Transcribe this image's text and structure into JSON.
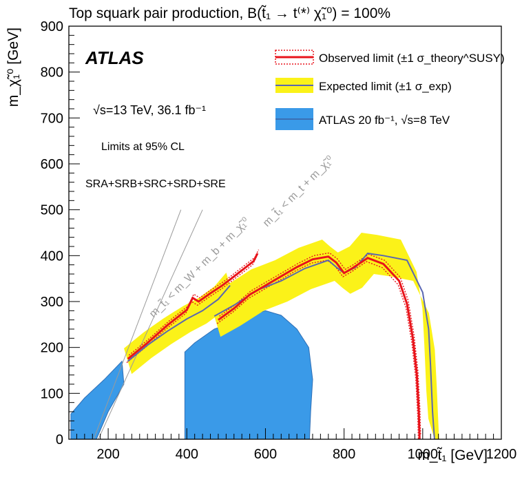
{
  "chart_data": {
    "type": "area",
    "title": "Top squark pair production, B(t̃₁ → t⁽*⁾ χ̃₁⁰) = 100%",
    "xlabel": "m_t̃₁ [GeV]",
    "ylabel": "m_χ̃₁⁰ [GeV]",
    "xlim": [
      100,
      1200
    ],
    "ylim": [
      0,
      900
    ],
    "x_ticks": [
      "200",
      "400",
      "600",
      "800",
      "1000",
      "1200"
    ],
    "y_ticks": [
      "0",
      "100",
      "200",
      "300",
      "400",
      "500",
      "600",
      "700",
      "800",
      "900"
    ],
    "grid": false,
    "legend_position": "top-right",
    "experiment": "ATLAS",
    "energy_lumi": "√s=13 TeV, 36.1 fb⁻¹",
    "cl_text": "Limits at 95% CL",
    "signal_regions": "SRA+SRB+SRC+SRD+SRE",
    "kinematic_labels": {
      "top": "m_t̃₁ < m_t + m_χ̃₁⁰",
      "w_b": "m_t̃₁ < m_W + m_b + m_χ̃₁⁰"
    },
    "series": [
      {
        "name": "Observed limit (±1 σ_theory^SUSY)",
        "color": "#e8141b",
        "upper_branch": [
          [
            250,
            175
          ],
          [
            300,
            210
          ],
          [
            350,
            248
          ],
          [
            400,
            282
          ],
          [
            415,
            308
          ],
          [
            430,
            300
          ],
          [
            460,
            318
          ],
          [
            490,
            335
          ],
          [
            510,
            348
          ],
          [
            540,
            368
          ],
          [
            570,
            388
          ],
          [
            580,
            405
          ]
        ],
        "lower_branch": [
          [
            480,
            260
          ],
          [
            520,
            285
          ],
          [
            560,
            315
          ],
          [
            600,
            335
          ],
          [
            640,
            355
          ],
          [
            680,
            375
          ],
          [
            720,
            392
          ],
          [
            760,
            398
          ],
          [
            780,
            385
          ],
          [
            800,
            362
          ],
          [
            820,
            372
          ],
          [
            860,
            395
          ],
          [
            900,
            382
          ],
          [
            940,
            345
          ],
          [
            960,
            295
          ],
          [
            975,
            220
          ],
          [
            985,
            140
          ],
          [
            990,
            60
          ],
          [
            992,
            0
          ]
        ]
      },
      {
        "name": "Expected limit (±1 σ_exp)",
        "color": "#5a67b0",
        "upper_branch": [
          [
            250,
            170
          ],
          [
            300,
            205
          ],
          [
            350,
            235
          ],
          [
            400,
            262
          ],
          [
            440,
            280
          ],
          [
            480,
            305
          ],
          [
            510,
            335
          ]
        ],
        "lower_branch": [
          [
            470,
            268
          ],
          [
            520,
            292
          ],
          [
            580,
            325
          ],
          [
            640,
            345
          ],
          [
            700,
            372
          ],
          [
            760,
            390
          ],
          [
            780,
            375
          ],
          [
            800,
            362
          ],
          [
            830,
            375
          ],
          [
            860,
            405
          ],
          [
            900,
            400
          ],
          [
            960,
            390
          ],
          [
            1000,
            320
          ],
          [
            1015,
            240
          ],
          [
            1020,
            160
          ],
          [
            1025,
            60
          ],
          [
            1030,
            0
          ]
        ]
      },
      {
        "name": "ATLAS 20 fb⁻¹, √s=8 TeV",
        "color": "#3a8ee6",
        "region": [
          [
            395,
            190
          ],
          [
            420,
            210
          ],
          [
            470,
            240
          ],
          [
            520,
            255
          ],
          [
            570,
            272
          ],
          [
            600,
            280
          ],
          [
            640,
            270
          ],
          [
            680,
            240
          ],
          [
            710,
            200
          ],
          [
            720,
            130
          ],
          [
            715,
            60
          ],
          [
            712,
            0
          ],
          [
            395,
            0
          ]
        ]
      }
    ]
  }
}
